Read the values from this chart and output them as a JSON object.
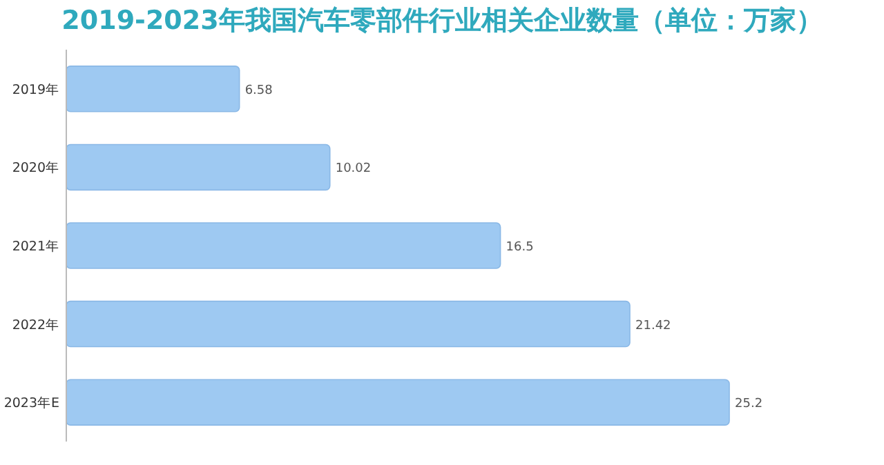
{
  "chart_data": {
    "type": "bar",
    "orientation": "horizontal",
    "title": "2019-2023年我国汽车零部件行业相关企业数量（单位：万家）",
    "categories": [
      "2019年",
      "2020年",
      "2021年",
      "2022年",
      "2023年E"
    ],
    "values": [
      6.58,
      10.02,
      16.5,
      21.42,
      25.2
    ],
    "color": "#9ec9f2",
    "data_labels": true
  }
}
